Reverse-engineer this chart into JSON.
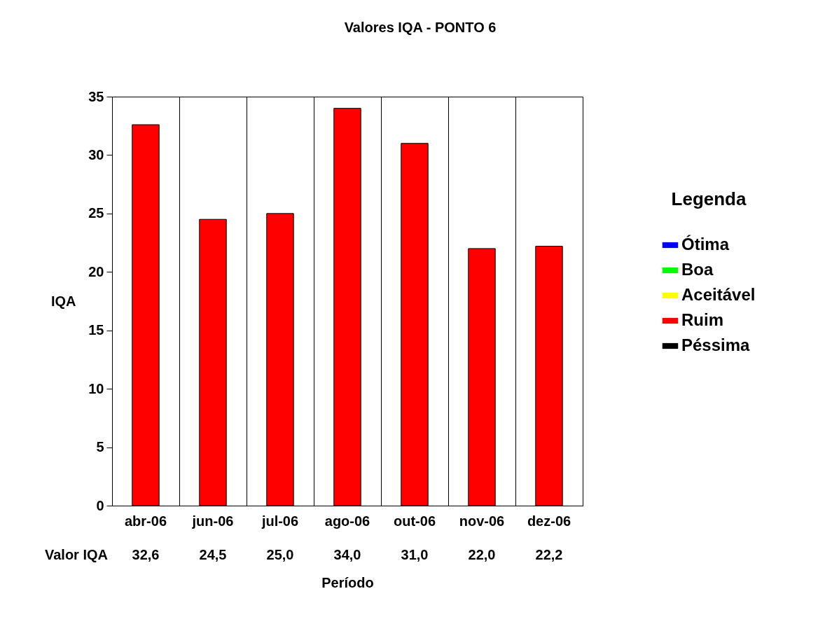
{
  "chart_data": {
    "type": "bar",
    "title": "Valores IQA - PONTO 6",
    "xlabel": "Período",
    "ylabel": "IQA",
    "legend_title": "Legenda",
    "categories": [
      "abr-06",
      "jun-06",
      "jul-06",
      "ago-06",
      "out-06",
      "nov-06",
      "dez-06"
    ],
    "series": [
      {
        "name": "Ótima",
        "color": "#0000ff",
        "values": [
          null,
          null,
          null,
          null,
          null,
          null,
          null
        ]
      },
      {
        "name": "Boa",
        "color": "#00ff00",
        "values": [
          null,
          null,
          null,
          null,
          null,
          null,
          null
        ]
      },
      {
        "name": "Aceitável",
        "color": "#ffff00",
        "values": [
          null,
          null,
          null,
          null,
          null,
          null,
          null
        ]
      },
      {
        "name": "Ruim",
        "color": "#ff0000",
        "values": [
          32.6,
          24.5,
          25.0,
          34.0,
          31.0,
          22.0,
          22.2
        ],
        "value_labels": [
          "32,6",
          "24,5",
          "25,0",
          "34,0",
          "31,0",
          "22,0",
          "22,2"
        ]
      },
      {
        "name": "Péssima",
        "color": "#000000",
        "values": [
          null,
          null,
          null,
          null,
          null,
          null,
          null
        ]
      }
    ],
    "annotations": [
      "Valor IQA"
    ],
    "ylim": [
      0,
      35
    ],
    "yticks": [
      0,
      5,
      10,
      15,
      20,
      25,
      30,
      35
    ],
    "grid": "x",
    "legend": "right"
  }
}
